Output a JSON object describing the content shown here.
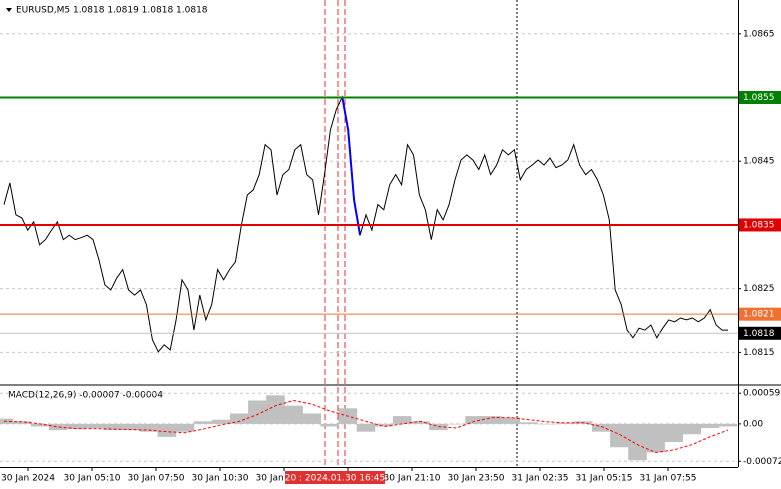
{
  "chart_data": [
    {
      "type": "line",
      "title": "EURUSD,M5  1.0818 1.0819 1.0818 1.0818",
      "ylim": [
        1.08102,
        1.08703
      ],
      "yticks": [
        1.0865,
        1.0845,
        1.0825,
        1.0815
      ],
      "grid": true,
      "x_labels": [
        "30 Jan 2024",
        "30 Jan 05:10",
        "30 Jan 07:50",
        "30 Jan 10:30",
        "30 Jan 13:10",
        "20 : 2024.01.30 16:45",
        "30 Jan 18:30",
        "30 Jan 21:10",
        "30 Jan 23:50",
        "31 Jan 02:35",
        "31 Jan 05:15",
        "31 Jan 07:55"
      ],
      "levels": [
        {
          "value": 1.0855,
          "color": "#008000"
        },
        {
          "value": 1.0835,
          "color": "#e00000"
        },
        {
          "value": 1.0821,
          "color": "#f07030"
        },
        {
          "value": 1.0818,
          "color": "#000000"
        }
      ],
      "series": [
        {
          "color": "#000000",
          "values": [
            1.08382,
            1.08416,
            1.08366,
            1.08361,
            1.08342,
            1.08355,
            1.08319,
            1.08327,
            1.08342,
            1.08355,
            1.08327,
            1.08334,
            1.08327,
            1.0833,
            1.08334,
            1.08327,
            1.08295,
            1.08256,
            1.08248,
            1.08267,
            1.0828,
            1.08248,
            1.0824,
            1.08248,
            1.08225,
            1.0817,
            1.08151,
            1.08162,
            1.08154,
            1.08201,
            1.08264,
            1.08248,
            1.08185,
            1.0824,
            1.08201,
            1.08225,
            1.0828,
            1.08264,
            1.0828,
            1.08292,
            1.0835,
            1.08397,
            1.08405,
            1.08429,
            1.08476,
            1.08468,
            1.08397,
            1.08429,
            1.08437,
            1.08468,
            1.08476,
            1.08429,
            1.08421,
            1.08366,
            1.08429,
            1.08499,
            1.08531,
            1.08551,
            1.08499,
            1.08389,
            1.08334,
            1.08366,
            1.08342,
            1.08382,
            1.08374,
            1.08413,
            1.08429,
            1.08413,
            1.08476,
            1.0846,
            1.08397,
            1.08374,
            1.08327,
            1.08374,
            1.08358,
            1.08382,
            1.08421,
            1.08452,
            1.0846,
            1.08452,
            1.08437,
            1.0846,
            1.08429,
            1.08444,
            1.08468,
            1.0846,
            1.08468,
            1.08421,
            1.08437,
            1.08444,
            1.08452,
            1.08444,
            1.08455,
            1.0844,
            1.08444,
            1.08452,
            1.08476,
            1.08444,
            1.08429,
            1.08437,
            1.08421,
            1.08397,
            1.08358,
            1.08248,
            1.08225,
            1.08185,
            1.08173,
            1.08188,
            1.08185,
            1.08193,
            1.08173,
            1.08188,
            1.08201,
            1.08198,
            1.08204,
            1.08201,
            1.08204,
            1.08198,
            1.08204,
            1.08217,
            1.08193,
            1.08185,
            1.08185
          ]
        },
        {
          "color": "#0000ff",
          "values": [
            null,
            null,
            null,
            null,
            null,
            null,
            null,
            null,
            null,
            null,
            null,
            null,
            null,
            null,
            null,
            null,
            null,
            null,
            null,
            null,
            null,
            null,
            null,
            null,
            null,
            null,
            null,
            null,
            null,
            null,
            null,
            null,
            null,
            null,
            null,
            null,
            null,
            null,
            null,
            null,
            null,
            null,
            null,
            null,
            null,
            null,
            null,
            null,
            null,
            null,
            null,
            null,
            null,
            null,
            null,
            null,
            null,
            1.08551,
            1.08499,
            1.08389,
            1.08334,
            null,
            null,
            null,
            null,
            null,
            null,
            null,
            null,
            null,
            null,
            null,
            null,
            null,
            null,
            null,
            null,
            null,
            null,
            null,
            null,
            null,
            null,
            null,
            null,
            null,
            null,
            null,
            null,
            null,
            null,
            null,
            null,
            null,
            null,
            null,
            null,
            null,
            null,
            null,
            null,
            null,
            null,
            null,
            null,
            null,
            null,
            null,
            null,
            null,
            null,
            null,
            null,
            null,
            null,
            null,
            null,
            null,
            null,
            null,
            null,
            null,
            null
          ]
        }
      ]
    },
    {
      "type": "combo",
      "title": "MACD(12,26,9) -0.00007 -0.00004",
      "ylim": [
        -0.00083,
        0.00071
      ],
      "yticks": [
        0.00059,
        {
          "value": 0,
          "label": "0.00"
        },
        -0.00072
      ],
      "series": [
        {
          "type": "bar",
          "color": "#c0c0c0",
          "values": [
            0.0001,
            5e-05,
            -5e-05,
            -0.00012,
            -0.0001,
            -8e-05,
            -0.00012,
            -0.00012,
            -0.00015,
            -0.00025,
            -0.00015,
            5e-05,
            8e-05,
            0.0002,
            0.00045,
            0.00055,
            0.00035,
            0.0002,
            -5e-05,
            0.0003,
            -0.00015,
            -5e-05,
            0.00015,
            5e-05,
            -0.00012,
            0,
            0.00015,
            0.00015,
            0.00012,
            3e-05,
            0,
            2e-05,
            5e-05,
            -0.00015,
            -0.00045,
            -0.0007,
            -0.00055,
            -0.00035,
            -0.0002,
            -8e-05,
            -5e-05
          ]
        },
        {
          "type": "line",
          "color": "#ff0000",
          "values": [
            5e-05,
            4e-05,
            0,
            -6e-05,
            -9e-05,
            -9e-05,
            -0.0001,
            -0.00011,
            -0.00012,
            -0.00015,
            -0.00017,
            -0.0001,
            -2e-05,
            5e-05,
            0.00018,
            0.00035,
            0.00045,
            0.00038,
            0.00025,
            0.00015,
            5e-05,
            -5e-05,
            0,
            5e-05,
            -5e-05,
            -8e-05,
            5e-05,
            0.00012,
            0.00012,
            8e-05,
            4e-05,
            2e-05,
            2e-05,
            -5e-05,
            -0.0002,
            -0.0004,
            -0.00055,
            -0.0005,
            -0.0004,
            -0.00025,
            -0.00012
          ]
        }
      ]
    }
  ]
}
